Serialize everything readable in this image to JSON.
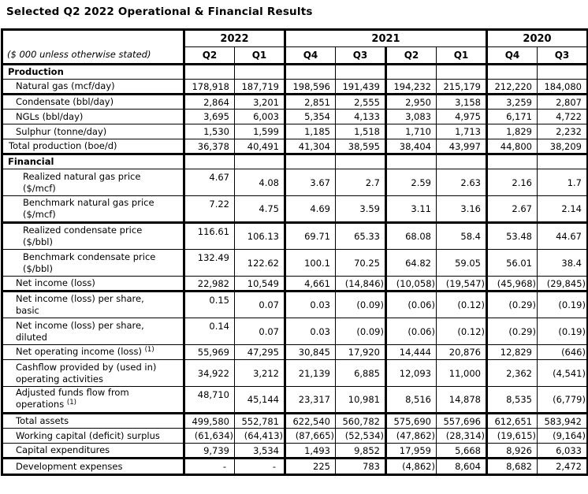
{
  "title": "Selected Q2 2022 Operational & Financial Results",
  "table": {
    "unit_note": "($ 000 unless otherwise stated)",
    "year_groups": [
      {
        "label": "2022",
        "span": 2
      },
      {
        "label": "2021",
        "span": 4
      },
      {
        "label": "2020",
        "span": 2
      }
    ],
    "quarter_headers": [
      "Q2",
      "Q1",
      "Q4",
      "Q3",
      "Q2",
      "Q1",
      "Q4",
      "Q3"
    ],
    "rows": [
      {
        "label": "Production",
        "type": "section",
        "values": [
          "",
          "",
          "",
          "",
          "",
          "",
          "",
          ""
        ]
      },
      {
        "label": "Natural gas (mcf/day)",
        "indent": 1,
        "thick_bottom": true,
        "values": [
          "178,918",
          "187,719",
          "198,596",
          "191,439",
          "194,232",
          "215,179",
          "212,220",
          "184,080"
        ]
      },
      {
        "label": "Condensate (bbl/day)",
        "indent": 1,
        "values": [
          "2,864",
          "3,201",
          "2,851",
          "2,555",
          "2,950",
          "3,158",
          "3,259",
          "2,807"
        ]
      },
      {
        "label": "NGLs (bbl/day)",
        "indent": 1,
        "values": [
          "3,695",
          "6,003",
          "5,354",
          "4,133",
          "3,083",
          "4,975",
          "6,171",
          "4,722"
        ]
      },
      {
        "label": "Sulphur (tonne/day)",
        "indent": 1,
        "values": [
          "1,530",
          "1,599",
          "1,185",
          "1,518",
          "1,710",
          "1,713",
          "1,829",
          "2,232"
        ]
      },
      {
        "label": "Total production (boe/d)",
        "indent": 0,
        "thick_bottom": true,
        "values": [
          "36,378",
          "40,491",
          "41,304",
          "38,595",
          "38,404",
          "43,997",
          "44,800",
          "38,209"
        ]
      },
      {
        "label": "Financial",
        "type": "section",
        "values": [
          "",
          "",
          "",
          "",
          "",
          "",
          "",
          ""
        ]
      },
      {
        "label": "Realized natural gas price\n($/mcf)",
        "indent": 2,
        "q2_top": true,
        "values": [
          "4.67",
          "4.08",
          "3.67",
          "2.7",
          "2.59",
          "2.63",
          "2.16",
          "1.7"
        ]
      },
      {
        "label": "Benchmark natural gas price\n($/mcf)",
        "indent": 2,
        "q2_top": true,
        "thick_bottom": true,
        "values": [
          "7.22",
          "4.75",
          "4.69",
          "3.59",
          "3.11",
          "3.16",
          "2.67",
          "2.14"
        ]
      },
      {
        "label": "Realized condensate price\n($/bbl)",
        "indent": 2,
        "q2_top": true,
        "values": [
          "116.61",
          "106.13",
          "69.71",
          "65.33",
          "68.08",
          "58.4",
          "53.48",
          "44.67"
        ]
      },
      {
        "label": "Benchmark condensate price\n($/bbl)",
        "indent": 2,
        "q2_top": true,
        "values": [
          "132.49",
          "122.62",
          "100.1",
          "70.25",
          "64.82",
          "59.05",
          "56.01",
          "38.4"
        ]
      },
      {
        "label": "Net income (loss)",
        "indent": 1,
        "thick_bottom": true,
        "values": [
          "22,982",
          "10,549",
          "4,661",
          "(14,846)",
          "(10,058)",
          "(19,547)",
          "(45,968)",
          "(29,845)"
        ]
      },
      {
        "label": "Net income (loss) per share,\nbasic",
        "indent": 1,
        "q2_top": true,
        "values": [
          "0.15",
          "0.07",
          "0.03",
          "(0.09)",
          "(0.06)",
          "(0.12)",
          "(0.29)",
          "(0.19)"
        ]
      },
      {
        "label": "Net income (loss) per share,\ndiluted",
        "indent": 1,
        "q2_top": true,
        "values": [
          "0.14",
          "0.07",
          "0.03",
          "(0.09)",
          "(0.06)",
          "(0.12)",
          "(0.29)",
          "(0.19)"
        ]
      },
      {
        "label": "Net operating income (loss) ",
        "sup": "(1)",
        "indent": 1,
        "values": [
          "55,969",
          "47,295",
          "30,845",
          "17,920",
          "14,444",
          "20,876",
          "12,829",
          "(646)"
        ]
      },
      {
        "label": "Cashflow provided by (used in)\noperating activities",
        "indent": 1,
        "values": [
          "34,922",
          "3,212",
          "21,139",
          "6,885",
          "12,093",
          "11,000",
          "2,362",
          "(4,541)"
        ]
      },
      {
        "label": "Adjusted funds flow from\noperations ",
        "sup": "(1)",
        "indent": 1,
        "q2_top": true,
        "thick_bottom": true,
        "values": [
          "48,710",
          "45,144",
          "23,317",
          "10,981",
          "8,516",
          "14,878",
          "8,535",
          "(6,779)"
        ]
      },
      {
        "label": "Total assets",
        "indent": 1,
        "values": [
          "499,580",
          "552,781",
          "622,540",
          "560,782",
          "575,690",
          "557,696",
          "612,651",
          "583,942"
        ]
      },
      {
        "label": "Working capital (deficit) surplus",
        "indent": 1,
        "values": [
          "(61,634)",
          "(64,413)",
          "(87,665)",
          "(52,534)",
          "(47,862)",
          "(28,314)",
          "(19,615)",
          "(9,164)"
        ]
      },
      {
        "label": "Capital expenditures",
        "indent": 1,
        "thick_bottom": true,
        "values": [
          "9,739",
          "3,534",
          "1,493",
          "9,852",
          "17,959",
          "5,668",
          "8,926",
          "6,033"
        ]
      },
      {
        "label": "Development expenses",
        "indent": 1,
        "values": [
          "-",
          "-",
          "225",
          "783",
          "(4,862)",
          "8,604",
          "8,682",
          "2,472"
        ]
      }
    ]
  }
}
